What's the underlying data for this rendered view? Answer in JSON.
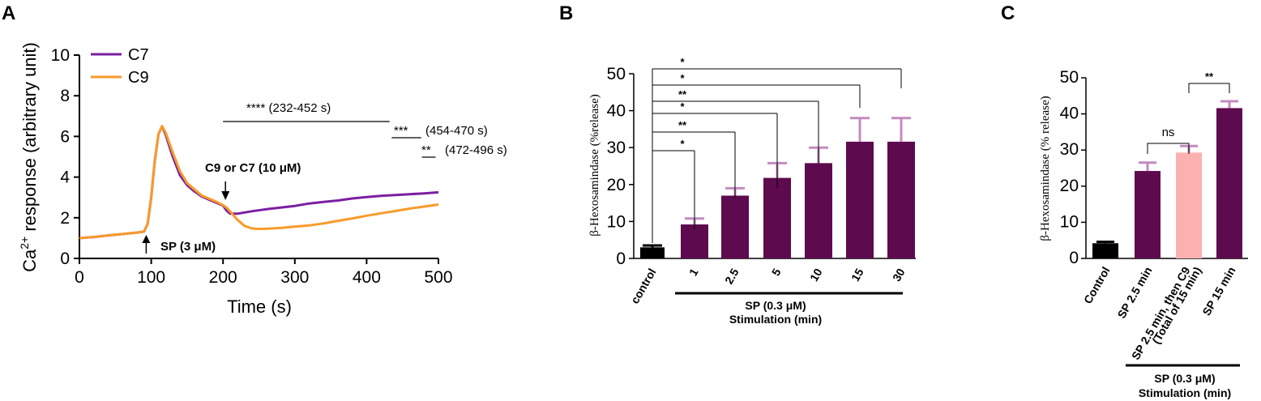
{
  "chart_data": [
    {
      "panel": "A",
      "type": "line",
      "xlabel": "Time (s)",
      "ylabel_pre": "Ca",
      "ylabel_sup": "2+",
      "ylabel_post": " response (arbitrary unit)",
      "xlim": [
        0,
        500
      ],
      "ylim": [
        0,
        10
      ],
      "xticks": [
        0,
        100,
        200,
        300,
        400,
        500
      ],
      "yticks": [
        0,
        2,
        4,
        6,
        8,
        10
      ],
      "series": [
        {
          "name": "C7",
          "color": "#7b1fa2",
          "x": [
            0,
            20,
            40,
            60,
            80,
            90,
            95,
            100,
            105,
            110,
            115,
            120,
            130,
            140,
            150,
            160,
            170,
            180,
            190,
            200,
            205,
            210,
            220,
            240,
            260,
            280,
            300,
            320,
            340,
            360,
            380,
            400,
            420,
            440,
            460,
            480,
            500
          ],
          "y": [
            1.0,
            1.05,
            1.13,
            1.2,
            1.27,
            1.32,
            1.7,
            3.0,
            4.8,
            6.1,
            6.5,
            6.1,
            5.0,
            4.1,
            3.6,
            3.3,
            3.05,
            2.9,
            2.75,
            2.6,
            2.35,
            2.2,
            2.2,
            2.32,
            2.42,
            2.5,
            2.58,
            2.7,
            2.78,
            2.85,
            2.95,
            3.02,
            3.08,
            3.12,
            3.16,
            3.2,
            3.25
          ]
        },
        {
          "name": "C9",
          "color": "#f89b2a",
          "x": [
            0,
            20,
            40,
            60,
            80,
            90,
            95,
            100,
            105,
            110,
            115,
            120,
            130,
            140,
            150,
            160,
            170,
            180,
            190,
            200,
            205,
            210,
            220,
            230,
            240,
            250,
            260,
            280,
            300,
            320,
            340,
            360,
            380,
            400,
            420,
            440,
            460,
            480,
            500
          ],
          "y": [
            1.0,
            1.05,
            1.13,
            1.2,
            1.27,
            1.32,
            1.7,
            3.0,
            4.8,
            6.1,
            6.5,
            6.2,
            5.2,
            4.3,
            3.7,
            3.4,
            3.1,
            2.95,
            2.8,
            2.62,
            2.5,
            2.3,
            1.9,
            1.6,
            1.48,
            1.45,
            1.46,
            1.5,
            1.56,
            1.62,
            1.72,
            1.85,
            1.97,
            2.1,
            2.22,
            2.33,
            2.45,
            2.55,
            2.65
          ]
        }
      ],
      "annotations": {
        "sp_label": "SP (3 μM)",
        "sp_time": 93,
        "cmpd_label": "C9 or C7 (10 μM)",
        "cmpd_time": 200,
        "sig1_stars": "****",
        "sig1_range": "(232-452 s)",
        "sig2_stars": "***",
        "sig2_range": "(454-470 s)",
        "sig3_stars": "**",
        "sig3_range": "(472-496 s)"
      }
    },
    {
      "panel": "B",
      "type": "bar",
      "ylabel": "β-Hexosamindase (%release)",
      "ylim": [
        0,
        50
      ],
      "yticks": [
        0,
        10,
        20,
        30,
        40,
        50
      ],
      "categories": [
        "control",
        "1",
        "2.5",
        "5",
        "10",
        "15",
        "30"
      ],
      "values": [
        3.0,
        9.2,
        17.0,
        21.8,
        25.8,
        31.6,
        31.6
      ],
      "errors": [
        0.5,
        1.6,
        2.0,
        4.0,
        4.2,
        6.4,
        6.4
      ],
      "bar_colors": [
        "#000000",
        "#5e0a4e",
        "#5e0a4e",
        "#5e0a4e",
        "#5e0a4e",
        "#5e0a4e",
        "#5e0a4e"
      ],
      "error_colors": [
        "#000000",
        "#c48bc0",
        "#c48bc0",
        "#c48bc0",
        "#c48bc0",
        "#c48bc0",
        "#c48bc0"
      ],
      "significance": [
        "*",
        "**",
        "*",
        "**",
        "*",
        "*"
      ],
      "group_label_line1": "SP (0.3 μM)",
      "group_label_line2": "Stimulation (min)"
    },
    {
      "panel": "C",
      "type": "bar",
      "ylabel": "β-Hexosamindase (% release)",
      "ylim": [
        0,
        50
      ],
      "yticks": [
        0,
        10,
        20,
        30,
        40,
        50
      ],
      "categories": [
        "Control",
        "SP 2.5 min",
        "SP 2.5 min, then C9",
        "SP 15 min"
      ],
      "category_sublabel": "(Total of 15 min)",
      "values": [
        4.2,
        24.2,
        29.3,
        41.6
      ],
      "errors": [
        0.4,
        2.3,
        1.8,
        1.9
      ],
      "bar_colors": [
        "#000000",
        "#5e0a4e",
        "#fbb1b0",
        "#5e0a4e"
      ],
      "error_colors": [
        "#000000",
        "#c48bc0",
        "#c48bc0",
        "#c48bc0"
      ],
      "significance": [
        {
          "from": 1,
          "to": 2,
          "label": "ns"
        },
        {
          "from": 2,
          "to": 3,
          "label": "**"
        }
      ],
      "group_label_line1": "SP (0.3 μM)",
      "group_label_line2": "Stimulation (min)"
    }
  ],
  "panels": {
    "a": "A",
    "b": "B",
    "c": "C"
  }
}
